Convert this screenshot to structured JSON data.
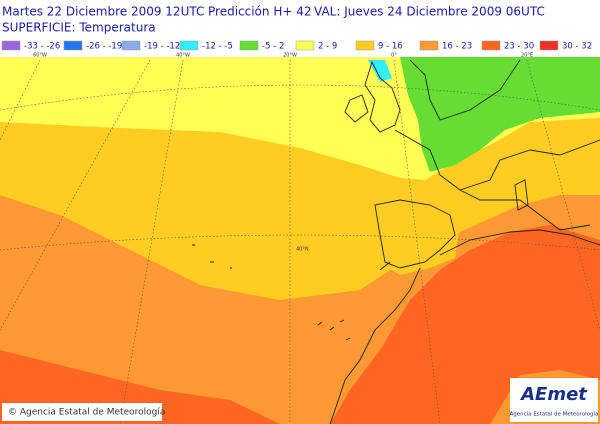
{
  "header": {
    "issued": "Martes 22 Diciembre 2009 12UTC",
    "prediction": "Predicción H+ 42",
    "valid": "VAL: Jueves 24 Diciembre 2009 06UTC",
    "field": "SUPERFICIE: Temperatura"
  },
  "legend": {
    "items": [
      {
        "label": "-33 - -26",
        "color": "#9966dd"
      },
      {
        "label": "-26 - -19",
        "color": "#2277ee"
      },
      {
        "label": "-19 - -12",
        "color": "#88aaee"
      },
      {
        "label": "-12 - -5",
        "color": "#33eeff"
      },
      {
        "label": "-5 - 2",
        "color": "#66dd33"
      },
      {
        "label": "2 - 9",
        "color": "#ffff55"
      },
      {
        "label": "9 - 16",
        "color": "#ffcc22"
      },
      {
        "label": "16 - 23",
        "color": "#ff9933"
      },
      {
        "label": "23 - 30",
        "color": "#ff6622"
      },
      {
        "label": "30 - 32",
        "color": "#ee3322"
      }
    ]
  },
  "map": {
    "longitude_labels": [
      "60°W",
      "40°W",
      "20°W",
      "0°",
      "20°E"
    ],
    "latitude_labels": [
      "40°N"
    ]
  },
  "footer": {
    "copyright": "© Agencia Estatal de Meteorología"
  },
  "logo": {
    "name": "AEmet",
    "agency": "Agencia Estatal de Meteorología"
  }
}
